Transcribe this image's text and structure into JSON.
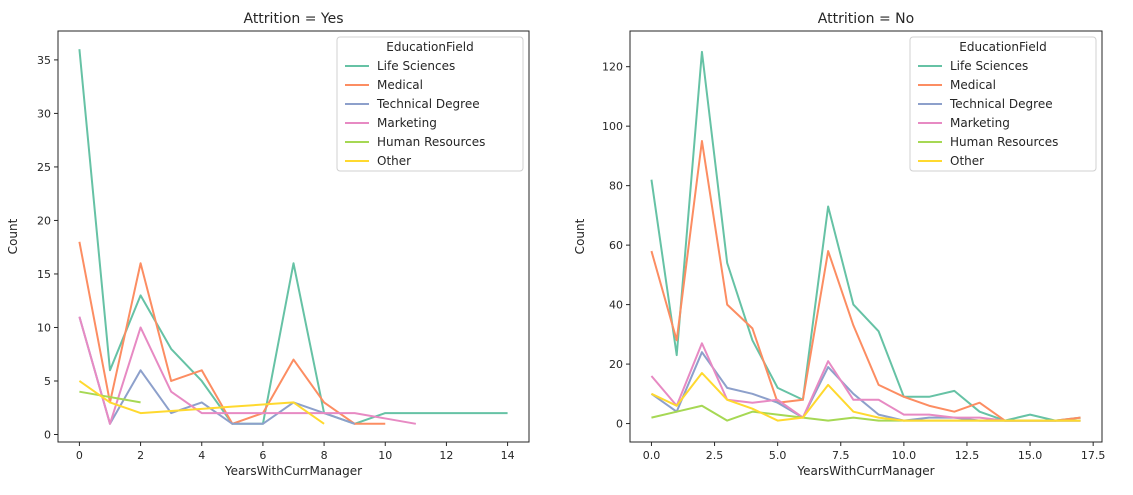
{
  "chart_data": [
    {
      "type": "line",
      "title": "Attrition = Yes",
      "xlabel": "YearsWithCurrManager",
      "ylabel": "Count",
      "xlim": [
        -0.7,
        14.7
      ],
      "ylim": [
        -0.7,
        37.7
      ],
      "xticks": [
        0,
        2,
        4,
        6,
        8,
        10,
        12,
        14
      ],
      "xtick_labels": [
        "0",
        "2",
        "4",
        "6",
        "8",
        "10",
        "12",
        "14"
      ],
      "yticks": [
        0,
        5,
        10,
        15,
        20,
        25,
        30,
        35
      ],
      "ytick_labels": [
        "0",
        "5",
        "10",
        "15",
        "20",
        "25",
        "30",
        "35"
      ],
      "grid": false,
      "legend": {
        "title": "EducationField",
        "placement": "top-right"
      },
      "series": [
        {
          "name": "Life Sciences",
          "color": "#66c2a5",
          "x": [
            0,
            1,
            2,
            3,
            4,
            5,
            6,
            7,
            8,
            9,
            10,
            11,
            12,
            13,
            14
          ],
          "y": [
            36,
            6,
            13,
            8,
            5,
            1,
            1,
            16,
            2,
            1,
            2,
            2,
            2,
            2,
            2
          ]
        },
        {
          "name": "Medical",
          "color": "#fc8d62",
          "x": [
            0,
            1,
            2,
            3,
            4,
            5,
            6,
            7,
            8,
            9,
            10
          ],
          "y": [
            18,
            3,
            16,
            5,
            6,
            1,
            2,
            7,
            3,
            1,
            1
          ]
        },
        {
          "name": "Technical Degree",
          "color": "#8da0cb",
          "x": [
            0,
            1,
            2,
            3,
            4,
            5,
            6,
            7,
            8,
            9
          ],
          "y": [
            11,
            1,
            6,
            2,
            3,
            1,
            1,
            3,
            2,
            1
          ]
        },
        {
          "name": "Marketing",
          "color": "#e78ac3",
          "x": [
            0,
            1,
            2,
            3,
            4,
            5,
            6,
            7,
            8,
            9,
            10,
            11
          ],
          "y": [
            11,
            1,
            10,
            4,
            2,
            2,
            2,
            2,
            2,
            2,
            1.5,
            1
          ]
        },
        {
          "name": "Human Resources",
          "color": "#a6d854",
          "x": [
            0,
            1,
            2
          ],
          "y": [
            4,
            3.5,
            3
          ]
        },
        {
          "name": "Other",
          "color": "#ffd92f",
          "x": [
            0,
            1,
            2,
            3,
            4,
            5,
            6,
            7,
            8
          ],
          "y": [
            5,
            3,
            2,
            2.2,
            2.4,
            2.6,
            2.8,
            3,
            1
          ]
        }
      ]
    },
    {
      "type": "line",
      "title": "Attrition = No",
      "xlabel": "YearsWithCurrManager",
      "ylabel": "Count",
      "xlim": [
        -0.85,
        17.85
      ],
      "ylim": [
        -6.2,
        132
      ],
      "xticks": [
        0,
        2.5,
        5,
        7.5,
        10,
        12.5,
        15,
        17.5
      ],
      "xtick_labels": [
        "0.0",
        "2.5",
        "5.0",
        "7.5",
        "10.0",
        "12.5",
        "15.0",
        "17.5"
      ],
      "yticks": [
        0,
        20,
        40,
        60,
        80,
        100,
        120
      ],
      "ytick_labels": [
        "0",
        "20",
        "40",
        "60",
        "80",
        "100",
        "120"
      ],
      "grid": false,
      "legend": {
        "title": "EducationField",
        "placement": "top-right"
      },
      "series": [
        {
          "name": "Life Sciences",
          "color": "#66c2a5",
          "x": [
            0,
            1,
            2,
            3,
            4,
            5,
            6,
            7,
            8,
            9,
            10,
            11,
            12,
            13,
            14,
            15,
            16,
            17
          ],
          "y": [
            82,
            23,
            125,
            54,
            28,
            12,
            8,
            73,
            40,
            31,
            9,
            9,
            11,
            4,
            1,
            3,
            1,
            2
          ]
        },
        {
          "name": "Medical",
          "color": "#fc8d62",
          "x": [
            0,
            1,
            2,
            3,
            4,
            5,
            6,
            7,
            8,
            9,
            10,
            11,
            12,
            13,
            14,
            15,
            16,
            17
          ],
          "y": [
            58,
            28,
            95,
            40,
            32,
            7,
            8,
            58,
            33,
            13,
            9,
            6,
            4,
            7,
            1,
            1,
            1,
            2
          ]
        },
        {
          "name": "Technical Degree",
          "color": "#8da0cb",
          "x": [
            0,
            1,
            2,
            3,
            4,
            5,
            6,
            7,
            8,
            9,
            10,
            11,
            12,
            13,
            14,
            15,
            16,
            17
          ],
          "y": [
            10,
            4,
            24,
            12,
            10,
            7,
            2,
            19,
            10,
            3,
            1,
            2,
            2,
            1,
            1,
            1,
            1,
            1
          ]
        },
        {
          "name": "Marketing",
          "color": "#e78ac3",
          "x": [
            0,
            1,
            2,
            3,
            4,
            5,
            6,
            7,
            8,
            9,
            10,
            11,
            12,
            13,
            14,
            15,
            16,
            17
          ],
          "y": [
            16,
            6,
            27,
            8,
            7,
            8,
            2,
            21,
            8,
            8,
            3,
            3,
            2,
            2,
            1,
            1,
            1,
            1
          ]
        },
        {
          "name": "Human Resources",
          "color": "#a6d854",
          "x": [
            0,
            1,
            2,
            3,
            4,
            5,
            6,
            7,
            8,
            9,
            10,
            11,
            12,
            13,
            14,
            15,
            16,
            17
          ],
          "y": [
            2,
            4,
            6,
            1,
            4,
            3,
            2,
            1,
            2,
            1,
            1,
            1,
            1,
            1,
            1,
            1,
            1,
            1
          ]
        },
        {
          "name": "Other",
          "color": "#ffd92f",
          "x": [
            0,
            1,
            2,
            3,
            4,
            5,
            6,
            7,
            8,
            9,
            10,
            11,
            12,
            13,
            14,
            15,
            16,
            17
          ],
          "y": [
            10,
            6,
            17,
            8,
            5,
            1,
            2,
            13,
            4,
            2,
            1,
            1,
            1,
            1,
            1,
            1,
            1,
            1
          ]
        }
      ]
    }
  ]
}
